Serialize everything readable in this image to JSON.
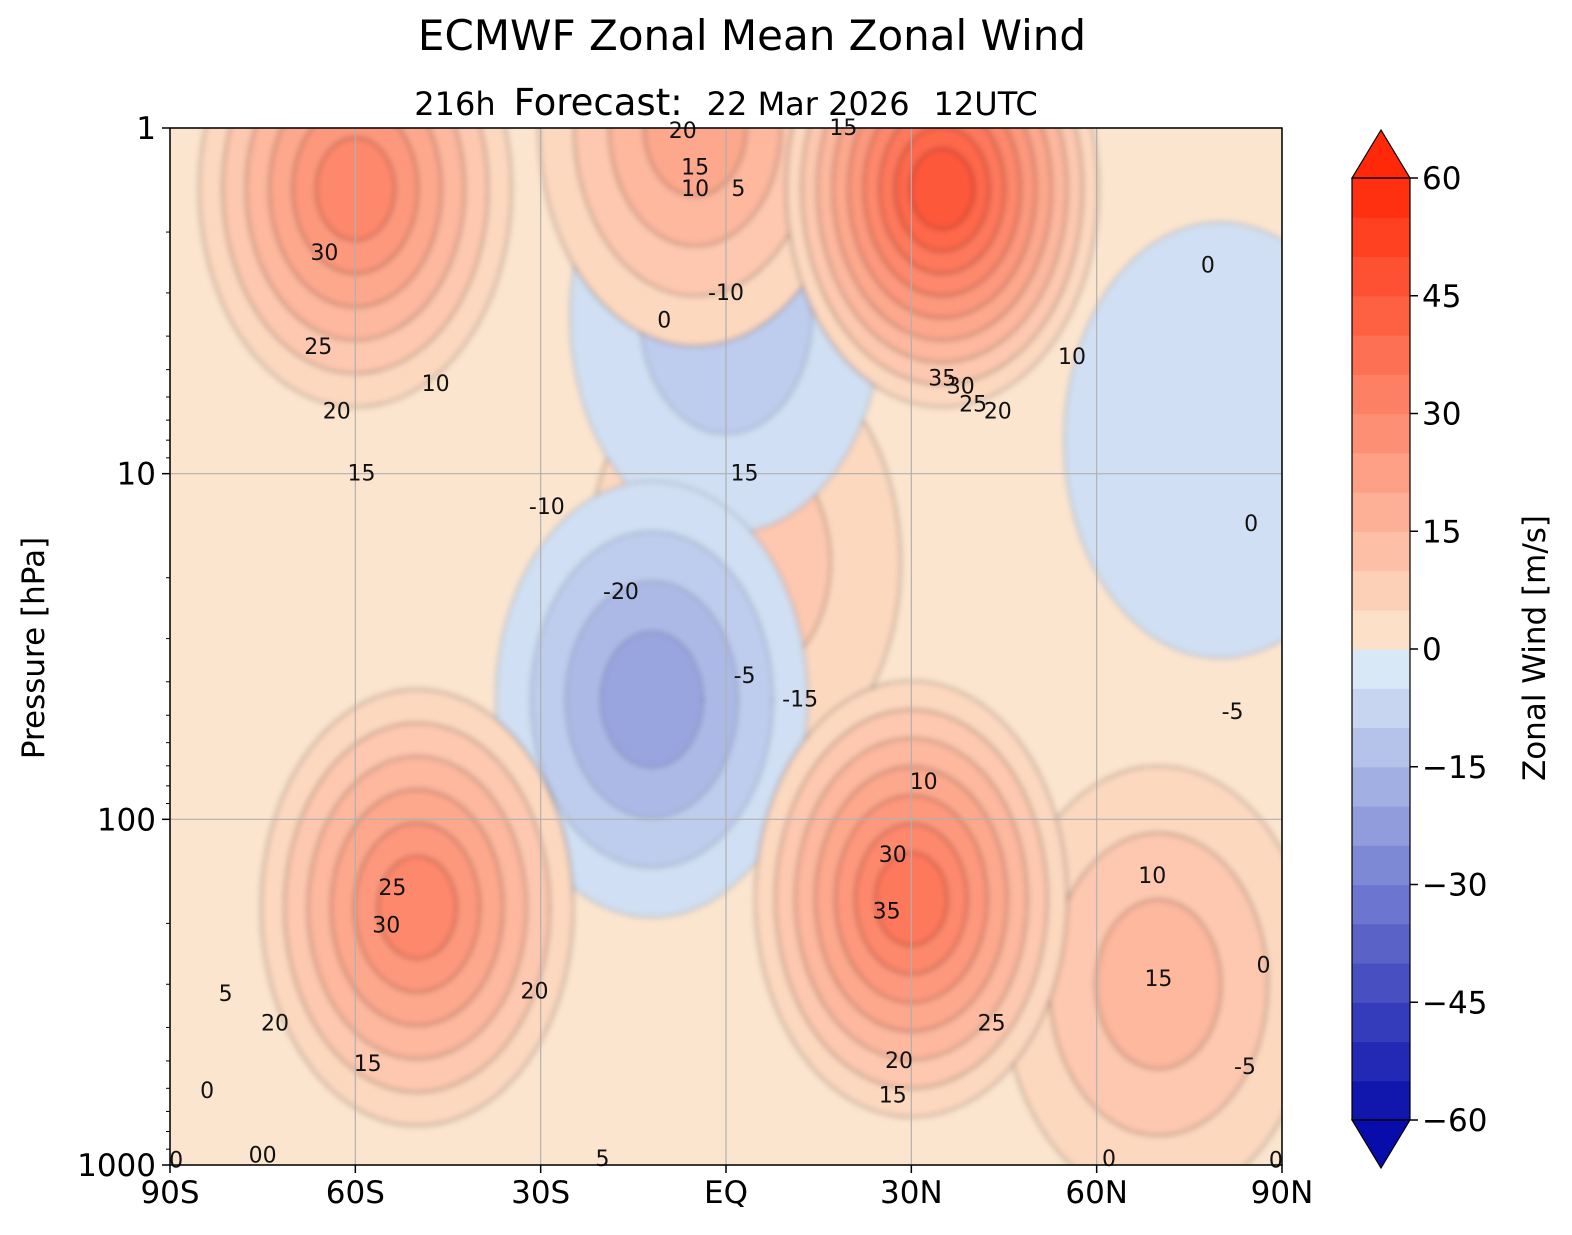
{
  "chart_data": {
    "type": "contour",
    "title": "ECMWF Zonal Mean Zonal Wind",
    "subtitle": {
      "lead": "216h",
      "label": "Forecast:",
      "date": "22 Mar 2026",
      "time": "12UTC"
    },
    "xlabel": "",
    "ylabel": "Pressure [hPa]",
    "x_ticks": [
      {
        "value": -90,
        "label": "90S"
      },
      {
        "value": -60,
        "label": "60S"
      },
      {
        "value": -30,
        "label": "30S"
      },
      {
        "value": 0,
        "label": "EQ"
      },
      {
        "value": 30,
        "label": "30N"
      },
      {
        "value": 60,
        "label": "60N"
      },
      {
        "value": 90,
        "label": "90N"
      }
    ],
    "y_ticks": [
      {
        "value": 1,
        "label": "1"
      },
      {
        "value": 10,
        "label": "10"
      },
      {
        "value": 100,
        "label": "100"
      },
      {
        "value": 1000,
        "label": "1000"
      }
    ],
    "xlim": [
      -90,
      90
    ],
    "ylim": [
      1000,
      1
    ],
    "y_scale": "log",
    "grid": true,
    "colorbar": {
      "label": "Zonal Wind [m/s]",
      "range": [
        -60,
        60
      ],
      "step": 5,
      "extend": "both",
      "ticks": [
        {
          "value": 60,
          "label": "60"
        },
        {
          "value": 45,
          "label": "45"
        },
        {
          "value": 30,
          "label": "30"
        },
        {
          "value": 15,
          "label": "15"
        },
        {
          "value": 0,
          "label": "0"
        },
        {
          "value": -15,
          "label": "−15"
        },
        {
          "value": -30,
          "label": "−30"
        },
        {
          "value": -45,
          "label": "−45"
        },
        {
          "value": -60,
          "label": "−60"
        }
      ]
    },
    "features": [
      {
        "name": "SH stratospheric jet",
        "lat": -60,
        "p": 1.5,
        "u": 32
      },
      {
        "name": "SH subtropical jet",
        "lat": -50,
        "p": 180,
        "u": 34
      },
      {
        "name": "NH stratospheric jet",
        "lat": 35,
        "p": 1.5,
        "u": 45
      },
      {
        "name": "NH subtropical jet",
        "lat": 30,
        "p": 170,
        "u": 36
      },
      {
        "name": "NH high-latitude jet",
        "lat": 70,
        "p": 300,
        "u": 16
      },
      {
        "name": "Tropical easterlies",
        "lat": -12,
        "p": 45,
        "u": -22
      },
      {
        "name": "Tropical upper easterlies",
        "lat": 0,
        "p": 3.5,
        "u": -12
      },
      {
        "name": "Polar easterlies",
        "lat": 80,
        "p": 8,
        "u": -8
      },
      {
        "name": "Equatorial westerly branch",
        "lat": 3,
        "p": 18,
        "u": 10
      },
      {
        "name": "Upper equatorial westerlies",
        "lat": -5,
        "p": 1,
        "u": 22
      }
    ],
    "contour_labels": [
      {
        "text": "30",
        "lat": -65,
        "p": 2.3
      },
      {
        "text": "25",
        "lat": -66,
        "p": 4.3
      },
      {
        "text": "20",
        "lat": -63,
        "p": 6.6
      },
      {
        "text": "10",
        "lat": -47,
        "p": 5.5
      },
      {
        "text": "15",
        "lat": -59,
        "p": 10.0
      },
      {
        "text": "20",
        "lat": -7,
        "p": 1.02
      },
      {
        "text": "15",
        "lat": -5,
        "p": 1.3
      },
      {
        "text": "10",
        "lat": -5,
        "p": 1.5
      },
      {
        "text": "5",
        "lat": 2,
        "p": 1.5
      },
      {
        "text": "15",
        "lat": 19,
        "p": 1.0
      },
      {
        "text": "0",
        "lat": -10,
        "p": 3.6
      },
      {
        "text": "-10",
        "lat": 0,
        "p": 3.0
      },
      {
        "text": "35",
        "lat": 35,
        "p": 5.3
      },
      {
        "text": "30",
        "lat": 38,
        "p": 5.6
      },
      {
        "text": "25",
        "lat": 40,
        "p": 6.3
      },
      {
        "text": "20",
        "lat": 44,
        "p": 6.6
      },
      {
        "text": "10",
        "lat": 56,
        "p": 4.6
      },
      {
        "text": "0",
        "lat": 78,
        "p": 2.5
      },
      {
        "text": "15",
        "lat": 3,
        "p": 10.0
      },
      {
        "text": "-10",
        "lat": -29,
        "p": 12.5
      },
      {
        "text": "-20",
        "lat": -17,
        "p": 22.0
      },
      {
        "text": "-5",
        "lat": 3,
        "p": 38.5
      },
      {
        "text": "-15",
        "lat": 12,
        "p": 45.0
      },
      {
        "text": "0",
        "lat": 85,
        "p": 14.0
      },
      {
        "text": "-5",
        "lat": 82,
        "p": 49.0
      },
      {
        "text": "10",
        "lat": 32,
        "p": 78.0
      },
      {
        "text": "30",
        "lat": 27,
        "p": 127.0
      },
      {
        "text": "35",
        "lat": 26,
        "p": 185.0
      },
      {
        "text": "25",
        "lat": -54,
        "p": 158.0
      },
      {
        "text": "30",
        "lat": -55,
        "p": 203.0
      },
      {
        "text": "20",
        "lat": -31,
        "p": 315.0
      },
      {
        "text": "20",
        "lat": -73,
        "p": 390.0
      },
      {
        "text": "15",
        "lat": -58,
        "p": 510.0
      },
      {
        "text": "5",
        "lat": -81,
        "p": 320.0
      },
      {
        "text": "0",
        "lat": -84,
        "p": 610.0
      },
      {
        "text": "20",
        "lat": 28,
        "p": 500.0
      },
      {
        "text": "15",
        "lat": 27,
        "p": 630.0
      },
      {
        "text": "25",
        "lat": 43,
        "p": 390.0
      },
      {
        "text": "10",
        "lat": 69,
        "p": 146.0
      },
      {
        "text": "15",
        "lat": 70,
        "p": 290.0
      },
      {
        "text": "0",
        "lat": 87,
        "p": 265.0
      },
      {
        "text": "-5",
        "lat": 84,
        "p": 520.0
      },
      {
        "text": "00",
        "lat": -75,
        "p": 940.0
      },
      {
        "text": "0",
        "lat": -89,
        "p": 970.0
      },
      {
        "text": "5",
        "lat": -20,
        "p": 960.0
      },
      {
        "text": "0",
        "lat": 62,
        "p": 960.0
      },
      {
        "text": "0",
        "lat": 89,
        "p": 970.0
      }
    ]
  }
}
